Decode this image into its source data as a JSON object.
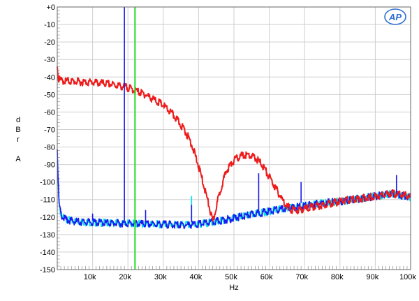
{
  "chart_data": {
    "type": "line",
    "title": "",
    "xlabel": "Hz",
    "ylabel_lines": [
      "d",
      "B",
      "r",
      "",
      "A"
    ],
    "xlim": [
      0,
      100000
    ],
    "ylim": [
      -150,
      0
    ],
    "x_ticks": [
      {
        "value": 10000,
        "label": "10k"
      },
      {
        "value": 20000,
        "label": "20k"
      },
      {
        "value": 30000,
        "label": "30k"
      },
      {
        "value": 40000,
        "label": "40k"
      },
      {
        "value": 50000,
        "label": "50k"
      },
      {
        "value": 60000,
        "label": "60k"
      },
      {
        "value": 70000,
        "label": "70k"
      },
      {
        "value": 80000,
        "label": "80k"
      },
      {
        "value": 90000,
        "label": "90k"
      },
      {
        "value": 100000,
        "label": "100k"
      }
    ],
    "y_ticks": [
      {
        "value": 0,
        "label": "+0"
      },
      {
        "value": -10,
        "label": "-10"
      },
      {
        "value": -20,
        "label": "-20"
      },
      {
        "value": -30,
        "label": "-30"
      },
      {
        "value": -40,
        "label": "-40"
      },
      {
        "value": -50,
        "label": "-50"
      },
      {
        "value": -60,
        "label": "-60"
      },
      {
        "value": -70,
        "label": "-70"
      },
      {
        "value": -80,
        "label": "-80"
      },
      {
        "value": -90,
        "label": "-90"
      },
      {
        "value": -100,
        "label": "-100"
      },
      {
        "value": -110,
        "label": "-110"
      },
      {
        "value": -120,
        "label": "-120"
      },
      {
        "value": -130,
        "label": "-130"
      },
      {
        "value": -140,
        "label": "-140"
      },
      {
        "value": -150,
        "label": "-150"
      }
    ],
    "grid": true,
    "series": [
      {
        "color": "#00e5e5",
        "x": [
          0,
          500,
          1000,
          2000,
          5000,
          10000,
          18000,
          20000,
          25000,
          30000,
          35000,
          40000,
          45000,
          50000,
          55000,
          60000,
          65000,
          70000,
          75000,
          80000,
          85000,
          90000,
          95000,
          100000
        ],
        "y": [
          -87,
          -112,
          -117,
          -120,
          -121.5,
          -122,
          -122.5,
          -122.5,
          -123,
          -123,
          -123.5,
          -123,
          -121.5,
          -119.5,
          -117.5,
          -115.5,
          -114,
          -112.5,
          -111,
          -110,
          -108.5,
          -107,
          -105.5,
          -107.5
        ]
      },
      {
        "color": "#1a1af0",
        "x": [
          0,
          500,
          1000,
          2000,
          5000,
          10000,
          18000,
          20000,
          25000,
          30000,
          35000,
          40000,
          45000,
          50000,
          55000,
          60000,
          65000,
          70000,
          75000,
          80000,
          85000,
          90000,
          95000,
          100000
        ],
        "y": [
          -80,
          -112,
          -117,
          -120,
          -121.5,
          -122,
          -122.5,
          -122.5,
          -123,
          -123,
          -123.5,
          -123,
          -121.5,
          -119.5,
          -117.5,
          -115.5,
          -114,
          -112.5,
          -111,
          -110,
          -108.5,
          -107,
          -105.5,
          -107.5
        ]
      },
      {
        "color": "#ee1b1b",
        "x": [
          0,
          300,
          1000,
          5000,
          10000,
          15000,
          20000,
          25000,
          30000,
          33000,
          36000,
          38000,
          40000,
          41500,
          43000,
          44000,
          45000,
          46500,
          48000,
          50000,
          52000,
          54000,
          56000,
          58000,
          60000,
          62000,
          64000,
          66000,
          68000,
          70000,
          75000,
          80000,
          85000,
          90000,
          95000,
          100000
        ],
        "y": [
          -32,
          -40,
          -41,
          -41.5,
          -42,
          -43,
          -45,
          -49,
          -55,
          -61,
          -69,
          -77,
          -90,
          -101,
          -113,
          -122,
          -113,
          -101,
          -92,
          -86.5,
          -84,
          -83.5,
          -85,
          -89,
          -96,
          -103,
          -110,
          -114.5,
          -115,
          -114,
          -112,
          -110,
          -108.5,
          -107,
          -105.5,
          -107
        ]
      }
    ],
    "spikes": [
      {
        "color": "#1a1af0",
        "x": 19000,
        "top": 0,
        "base": -122
      },
      {
        "color": "#1a1af0",
        "x": 10000,
        "top": -118,
        "base": -122
      },
      {
        "color": "#1a1af0",
        "x": 25000,
        "top": -116,
        "base": -123
      },
      {
        "color": "#00e5e5",
        "x": 38000,
        "top": -108,
        "base": -123
      },
      {
        "color": "#1a1af0",
        "x": 38000,
        "top": -113,
        "base": -123
      },
      {
        "color": "#1a1af0",
        "x": 57000,
        "top": -95,
        "base": -118
      },
      {
        "color": "#1a1af0",
        "x": 69000,
        "top": -100,
        "base": -112
      },
      {
        "color": "#1a1af0",
        "x": 96000,
        "top": -96,
        "base": -106
      }
    ],
    "marker": {
      "color": "#22dd22",
      "x": 22000
    }
  },
  "logo": {
    "text": "AP",
    "color": "#2f6fd0"
  }
}
